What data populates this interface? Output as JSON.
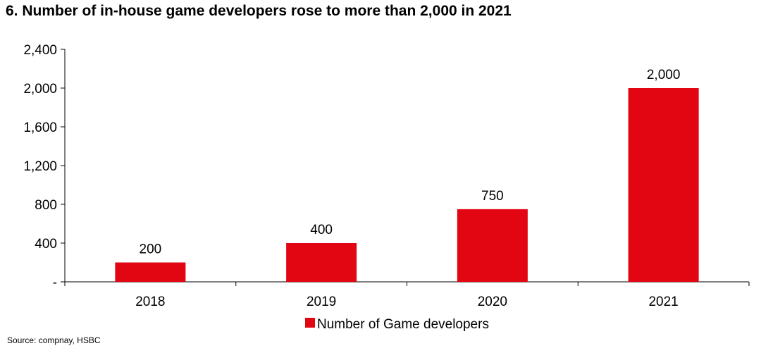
{
  "chart_data": {
    "type": "bar",
    "title": "6. Number of in-house game developers rose to more than 2,000 in 2021",
    "categories": [
      "2018",
      "2019",
      "2020",
      "2021"
    ],
    "series": [
      {
        "name": "Number of Game developers",
        "values": [
          200,
          400,
          750,
          2000
        ],
        "data_labels": [
          "200",
          "400",
          "750",
          "2,000"
        ],
        "color": "#e20613"
      }
    ],
    "ylim": [
      0,
      2400
    ],
    "yticks": [
      0,
      400,
      800,
      1200,
      1600,
      2000,
      2400
    ],
    "ytick_labels": [
      "-",
      "400",
      "800",
      "1,200",
      "1,600",
      "2,000",
      "2,400"
    ],
    "xlabel": "",
    "ylabel": "",
    "grid": false,
    "legend": "bottom-center"
  },
  "source": "Source: compnay, HSBC"
}
